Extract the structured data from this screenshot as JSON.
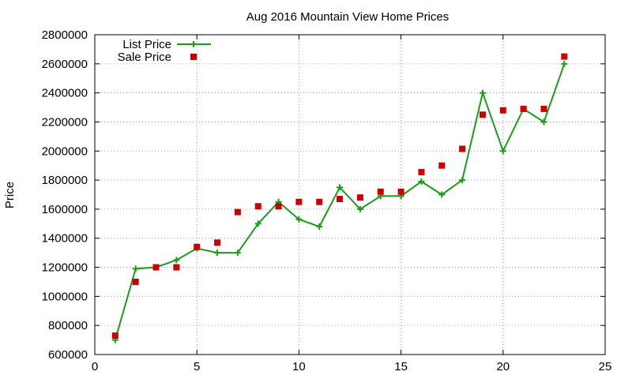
{
  "chart_data": {
    "type": "line",
    "title": "Aug 2016 Mountain View Home Prices",
    "xlabel": "",
    "ylabel": "Price",
    "xlim": [
      0,
      25
    ],
    "ylim": [
      600000,
      2800000
    ],
    "xticks": [
      0,
      5,
      10,
      15,
      20,
      25
    ],
    "yticks": [
      600000,
      800000,
      1000000,
      1200000,
      1400000,
      1600000,
      1800000,
      2000000,
      2200000,
      2400000,
      2600000,
      2800000
    ],
    "grid": true,
    "legend_position": "top-left",
    "series": [
      {
        "name": "List Price",
        "style": "line-with-plus-markers",
        "color": "#1a9e1a",
        "x": [
          1,
          2,
          3,
          4,
          5,
          6,
          7,
          8,
          9,
          10,
          11,
          12,
          13,
          14,
          15,
          16,
          17,
          18,
          19,
          20,
          21,
          22,
          23
        ],
        "y": [
          700000,
          1190000,
          1200000,
          1250000,
          1330000,
          1300000,
          1300000,
          1500000,
          1650000,
          1530000,
          1480000,
          1750000,
          1600000,
          1690000,
          1690000,
          1790000,
          1700000,
          1800000,
          2400000,
          2000000,
          2290000,
          2200000,
          2600000
        ]
      },
      {
        "name": "Sale Price",
        "style": "square-markers",
        "color": "#cc0000",
        "x": [
          1,
          2,
          3,
          4,
          5,
          6,
          7,
          8,
          9,
          10,
          11,
          12,
          13,
          14,
          15,
          16,
          17,
          18,
          19,
          20,
          21,
          22,
          23
        ],
        "y": [
          730000,
          1100000,
          1200000,
          1200000,
          1340000,
          1370000,
          1580000,
          1620000,
          1620000,
          1650000,
          1650000,
          1670000,
          1680000,
          1720000,
          1720000,
          1855000,
          1900000,
          2015000,
          2250000,
          2280000,
          2290000,
          2290000,
          2650000
        ]
      }
    ]
  }
}
